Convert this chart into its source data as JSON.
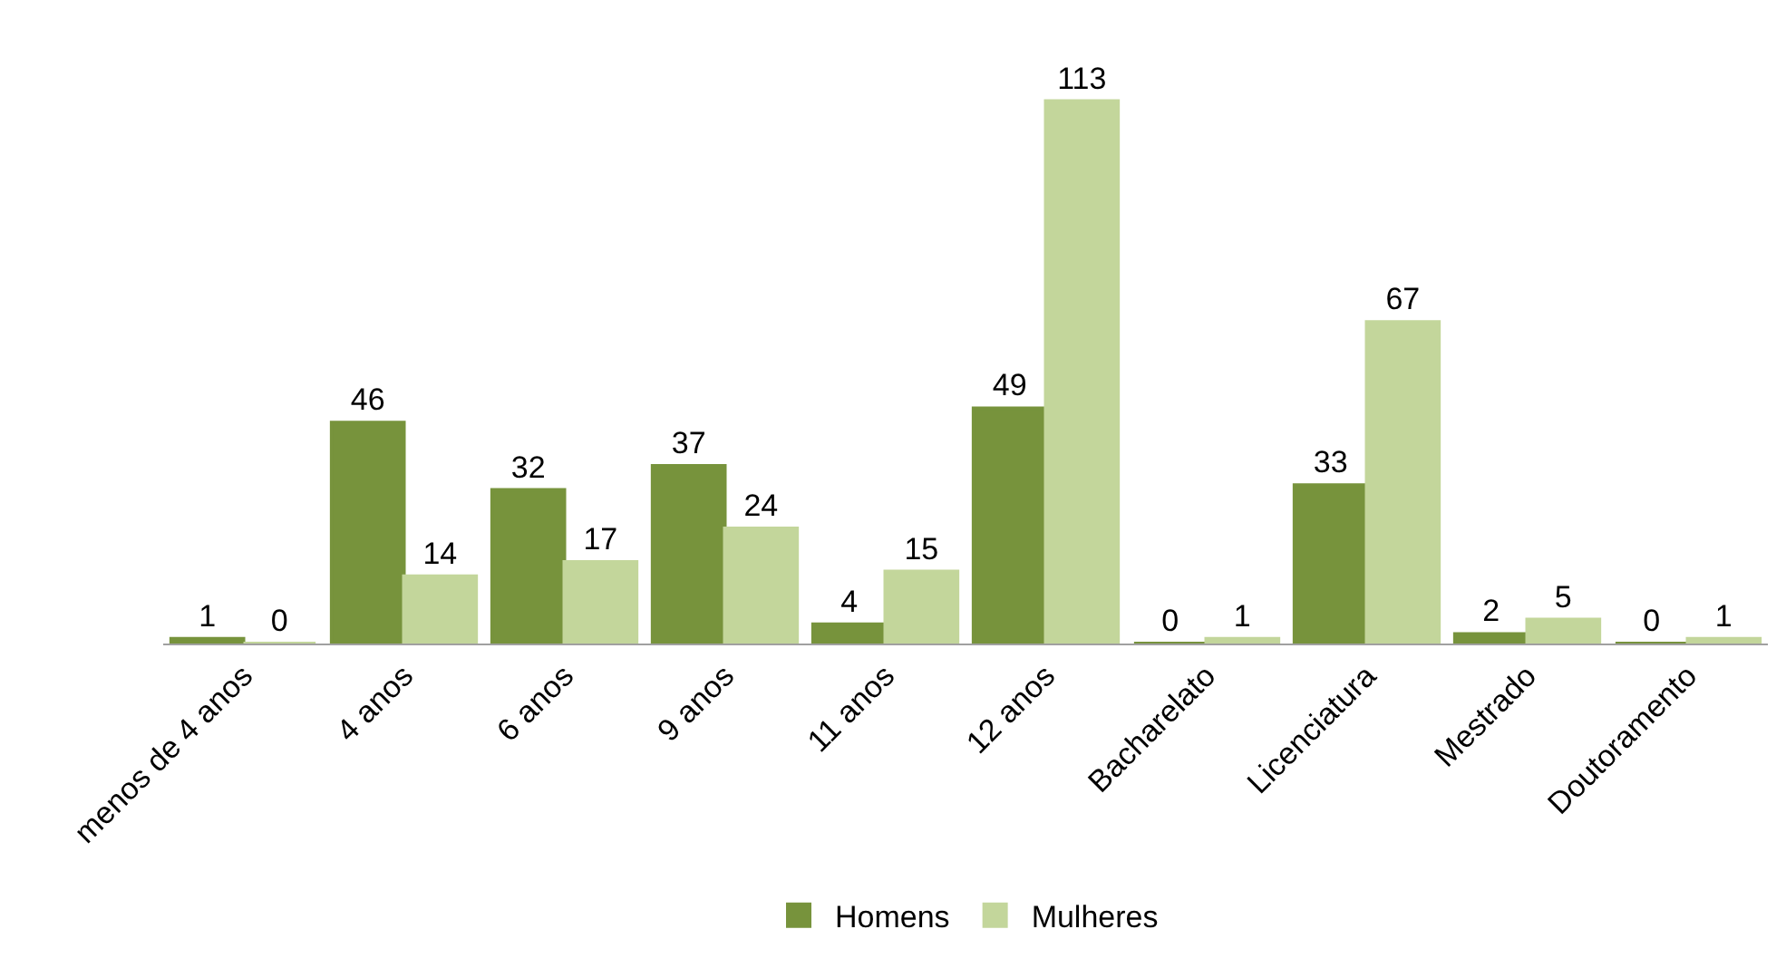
{
  "chart_data": {
    "type": "bar",
    "categories": [
      "menos de 4 anos",
      "4 anos",
      "6 anos",
      "9 anos",
      "11 anos",
      "12 anos",
      "Bacharelato",
      "Licenciatura",
      "Mestrado",
      "Doutoramento"
    ],
    "series": [
      {
        "name": "Homens",
        "color": "#77933c",
        "values": [
          1,
          46,
          32,
          37,
          4,
          49,
          0,
          33,
          2,
          0
        ]
      },
      {
        "name": "Mulheres",
        "color": "#c3d69b",
        "values": [
          0,
          14,
          17,
          24,
          15,
          113,
          1,
          67,
          5,
          1
        ]
      }
    ],
    "data_labels": true,
    "legend": "bottom"
  }
}
